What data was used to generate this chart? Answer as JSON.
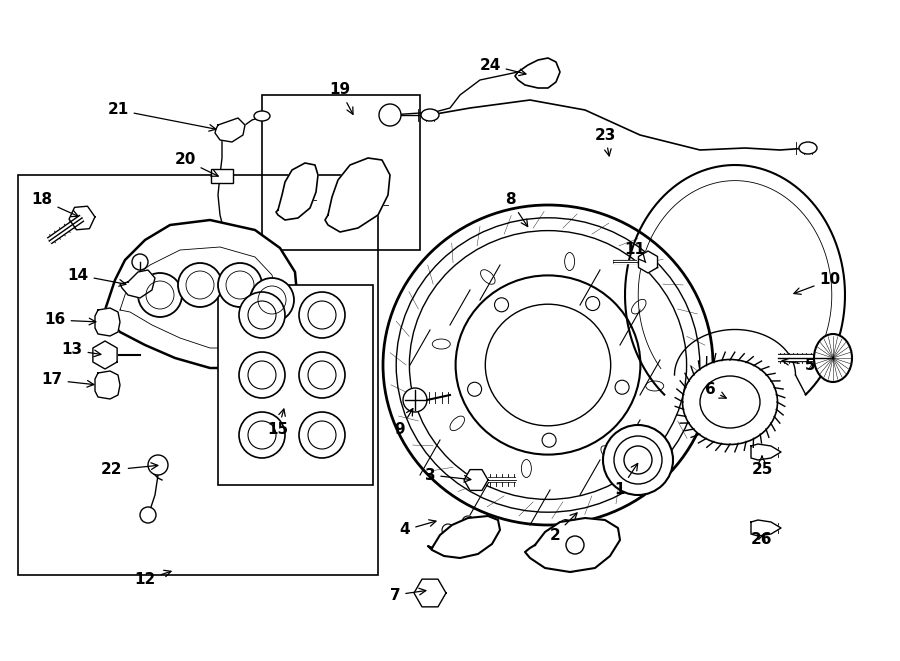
{
  "bg_color": "#ffffff",
  "line_color": "#000000",
  "figsize": [
    9.0,
    6.61
  ],
  "dpi": 100,
  "labels": [
    [
      "1",
      620,
      490,
      640,
      460
    ],
    [
      "2",
      555,
      535,
      580,
      510
    ],
    [
      "3",
      430,
      475,
      475,
      480
    ],
    [
      "4",
      405,
      530,
      440,
      520
    ],
    [
      "5",
      810,
      365,
      778,
      360
    ],
    [
      "6",
      710,
      390,
      730,
      400
    ],
    [
      "7",
      395,
      595,
      430,
      590
    ],
    [
      "8",
      510,
      200,
      530,
      230
    ],
    [
      "9",
      400,
      430,
      415,
      405
    ],
    [
      "10",
      830,
      280,
      790,
      295
    ],
    [
      "11",
      635,
      250,
      648,
      265
    ],
    [
      "12",
      145,
      580,
      175,
      570
    ],
    [
      "13",
      72,
      350,
      105,
      355
    ],
    [
      "14",
      78,
      275,
      130,
      285
    ],
    [
      "15",
      278,
      430,
      285,
      405
    ],
    [
      "16",
      55,
      320,
      100,
      322
    ],
    [
      "17",
      52,
      380,
      98,
      385
    ],
    [
      "18",
      42,
      200,
      82,
      218
    ],
    [
      "19",
      340,
      90,
      355,
      118
    ],
    [
      "20",
      185,
      160,
      222,
      178
    ],
    [
      "21",
      118,
      110,
      220,
      130
    ],
    [
      "22",
      112,
      470,
      162,
      465
    ],
    [
      "23",
      605,
      135,
      610,
      160
    ],
    [
      "24",
      490,
      65,
      530,
      75
    ],
    [
      "25",
      762,
      470,
      762,
      455
    ],
    [
      "26",
      762,
      540,
      765,
      530
    ]
  ]
}
